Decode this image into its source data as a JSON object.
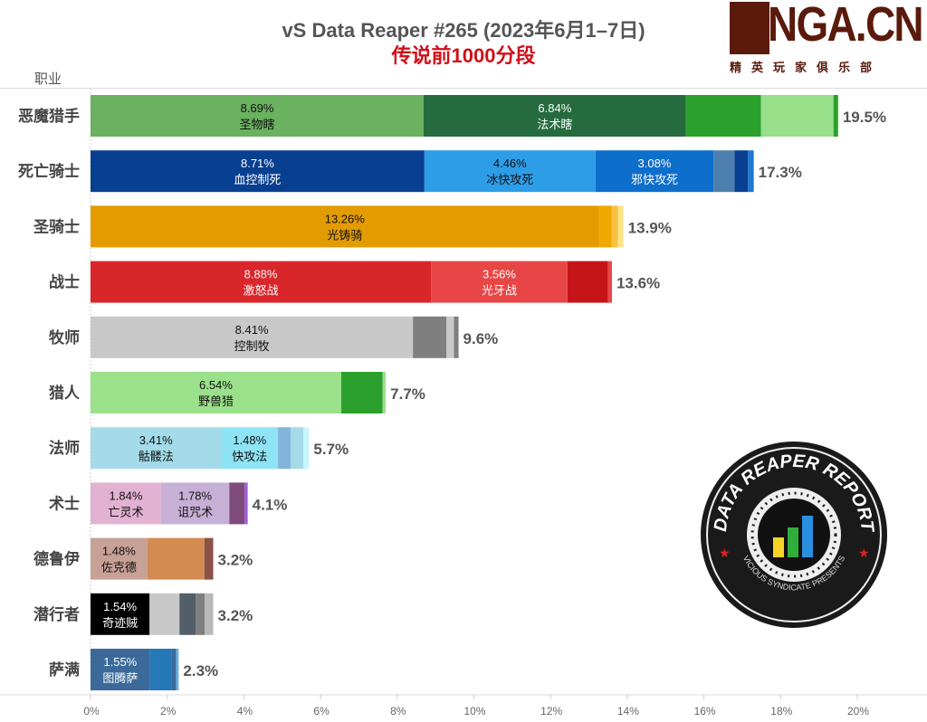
{
  "header": {
    "title": "vS Data Reaper #265 (2023年6月1–7日)",
    "subtitle": "传说前1000分段",
    "column_header": "职业"
  },
  "logo": {
    "text": "NGA.CN",
    "subtitle": "精英玩家俱乐部"
  },
  "badge": {
    "text_top": "DATA REAPER REPORT",
    "text_bottom": "VICIOUS SYNDICATE PRESENTS"
  },
  "chart_data": {
    "type": "bar",
    "orientation": "horizontal",
    "stacked": true,
    "title": "vS Data Reaper #265 (2023年6月1–7日)",
    "subtitle": "传说前1000分段",
    "xlim": [
      0,
      22
    ],
    "xticks": [
      "0%",
      "2%",
      "4%",
      "6%",
      "8%",
      "10%",
      "12%",
      "14%",
      "16%",
      "18%",
      "20%"
    ],
    "grid": false,
    "categories": [
      {
        "name": "恶魔猎手",
        "total": "19.5%",
        "segments": [
          {
            "label": "圣物瞎",
            "value": 8.69,
            "color": "#6ab160"
          },
          {
            "label": "法术瞎",
            "value": 6.84,
            "color": "#256b3d"
          },
          {
            "value": 1.96,
            "color": "#2ca02c"
          },
          {
            "value": 1.89,
            "color": "#98df8a"
          },
          {
            "value": 0.12,
            "color": "#2ca02c"
          }
        ]
      },
      {
        "name": "死亡骑士",
        "total": "17.3%",
        "segments": [
          {
            "label": "血控制死",
            "value": 8.71,
            "color": "#083f91"
          },
          {
            "label": "冰快攻死",
            "value": 4.46,
            "color": "#2e9de8"
          },
          {
            "label": "邪快攻死",
            "value": 3.08,
            "color": "#0e6ecc"
          },
          {
            "value": 0.55,
            "color": "#4c7fad"
          },
          {
            "value": 0.35,
            "color": "#083f91"
          },
          {
            "value": 0.15,
            "color": "#1f77d4"
          }
        ]
      },
      {
        "name": "圣骑士",
        "total": "13.9%",
        "segments": [
          {
            "label": "光铸骑",
            "value": 13.26,
            "color": "#e39b00"
          },
          {
            "value": 0.33,
            "color": "#f0a800"
          },
          {
            "value": 0.17,
            "color": "#f6c243"
          },
          {
            "value": 0.14,
            "color": "#fde38a"
          }
        ]
      },
      {
        "name": "战士",
        "total": "13.6%",
        "segments": [
          {
            "label": "激怒战",
            "value": 8.88,
            "color": "#d8262b"
          },
          {
            "label": "光牙战",
            "value": 3.56,
            "color": "#e84646"
          },
          {
            "value": 1.06,
            "color": "#c41418"
          },
          {
            "value": 0.1,
            "color": "#e84646"
          }
        ]
      },
      {
        "name": "牧师",
        "total": "9.6%",
        "segments": [
          {
            "label": "控制牧",
            "value": 8.41,
            "color": "#c8c8c8"
          },
          {
            "value": 0.87,
            "color": "#7f7f7f"
          },
          {
            "value": 0.2,
            "color": "#c8c8c8"
          },
          {
            "value": 0.12,
            "color": "#7f7f7f"
          }
        ]
      },
      {
        "name": "猎人",
        "total": "7.7%",
        "segments": [
          {
            "label": "野兽猎",
            "value": 6.54,
            "color": "#9be08b"
          },
          {
            "value": 1.08,
            "color": "#2ca02c"
          },
          {
            "value": 0.08,
            "color": "#9be08b"
          }
        ]
      },
      {
        "name": "法师",
        "total": "5.7%",
        "segments": [
          {
            "label": "骷髅法",
            "value": 3.41,
            "color": "#a3dbe8"
          },
          {
            "label": "快攻法",
            "value": 1.48,
            "color": "#8ee3f5"
          },
          {
            "value": 0.33,
            "color": "#83b5dc"
          },
          {
            "value": 0.33,
            "color": "#a3dbe8"
          },
          {
            "value": 0.15,
            "color": "#c8f6ff"
          }
        ]
      },
      {
        "name": "术士",
        "total": "4.1%",
        "segments": [
          {
            "label": "亡灵术",
            "value": 1.84,
            "color": "#e2b2d2"
          },
          {
            "label": "诅咒术",
            "value": 1.78,
            "color": "#c6b0d6"
          },
          {
            "value": 0.4,
            "color": "#7d4c7a"
          },
          {
            "value": 0.08,
            "color": "#a05cd8"
          }
        ]
      },
      {
        "name": "德鲁伊",
        "total": "3.2%",
        "segments": [
          {
            "label": "佐克德",
            "value": 1.48,
            "color": "#c7a096"
          },
          {
            "value": 1.49,
            "color": "#d48b52"
          },
          {
            "value": 0.23,
            "color": "#8a5147"
          }
        ]
      },
      {
        "name": "潜行者",
        "total": "3.2%",
        "segments": [
          {
            "label": "奇迹贼",
            "value": 1.54,
            "color": "#000000"
          },
          {
            "value": 0.78,
            "color": "#c8c8c8"
          },
          {
            "value": 0.42,
            "color": "#525e6a"
          },
          {
            "value": 0.24,
            "color": "#7f7f7f"
          },
          {
            "value": 0.22,
            "color": "#b8b8b8"
          }
        ]
      },
      {
        "name": "萨满",
        "total": "2.3%",
        "segments": [
          {
            "label": "图腾萨",
            "value": 1.55,
            "color": "#3b6a9a"
          },
          {
            "value": 0.28,
            "color": "#2678b8"
          },
          {
            "value": 0.28,
            "color": "#2478b5"
          },
          {
            "value": 0.12,
            "color": "#3b6a9a"
          },
          {
            "value": 0.07,
            "color": "#6aaee0"
          }
        ]
      }
    ]
  }
}
